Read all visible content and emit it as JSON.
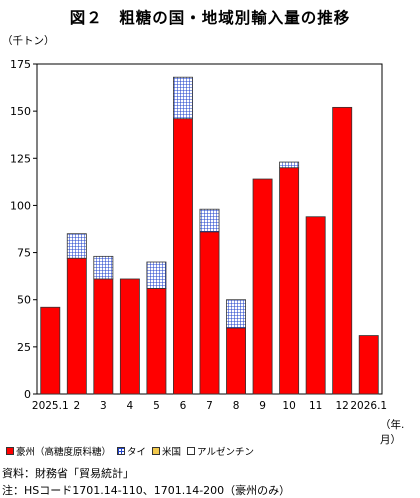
{
  "chart_data": {
    "type": "bar",
    "title": "図２　粗糖の国・地域別輸入量の推移",
    "y_unit": "（千トン）",
    "x_unit": "（年.月）",
    "ylim": [
      0,
      175
    ],
    "yticks": [
      0,
      25,
      50,
      75,
      100,
      125,
      150,
      175
    ],
    "grid": false,
    "stacked": true,
    "categories": [
      "2025.1",
      "2",
      "3",
      "4",
      "5",
      "6",
      "7",
      "8",
      "9",
      "10",
      "11",
      "12",
      "2026.1"
    ],
    "series": [
      {
        "name": "豪州（高糖度原料糖）",
        "color": "#ff0000",
        "pattern": "solid",
        "values": [
          46,
          72,
          61,
          61,
          56,
          146,
          86,
          35,
          114,
          120,
          94,
          152,
          31
        ]
      },
      {
        "name": "タイ",
        "color": "#3355cc",
        "pattern": "grid",
        "values": [
          0,
          13,
          12,
          0,
          14,
          22,
          12,
          15,
          0,
          3,
          0,
          0,
          0
        ]
      },
      {
        "name": "米国",
        "color": "#f2c94c",
        "pattern": "solid",
        "values": [
          0,
          0,
          0,
          0,
          0,
          0,
          0,
          0,
          0,
          0,
          0,
          0,
          0
        ]
      },
      {
        "name": "アルゼンチン",
        "color": "#ffffff",
        "pattern": "solid",
        "values": [
          0,
          0,
          0,
          0,
          0,
          0,
          0,
          0,
          0,
          0,
          0,
          0,
          0
        ]
      }
    ],
    "legend_position": "bottom-left"
  },
  "source": "資料：財務省「貿易統計」",
  "note": "注：HSコード1701.14-110、1701.14-200（豪州のみ）"
}
